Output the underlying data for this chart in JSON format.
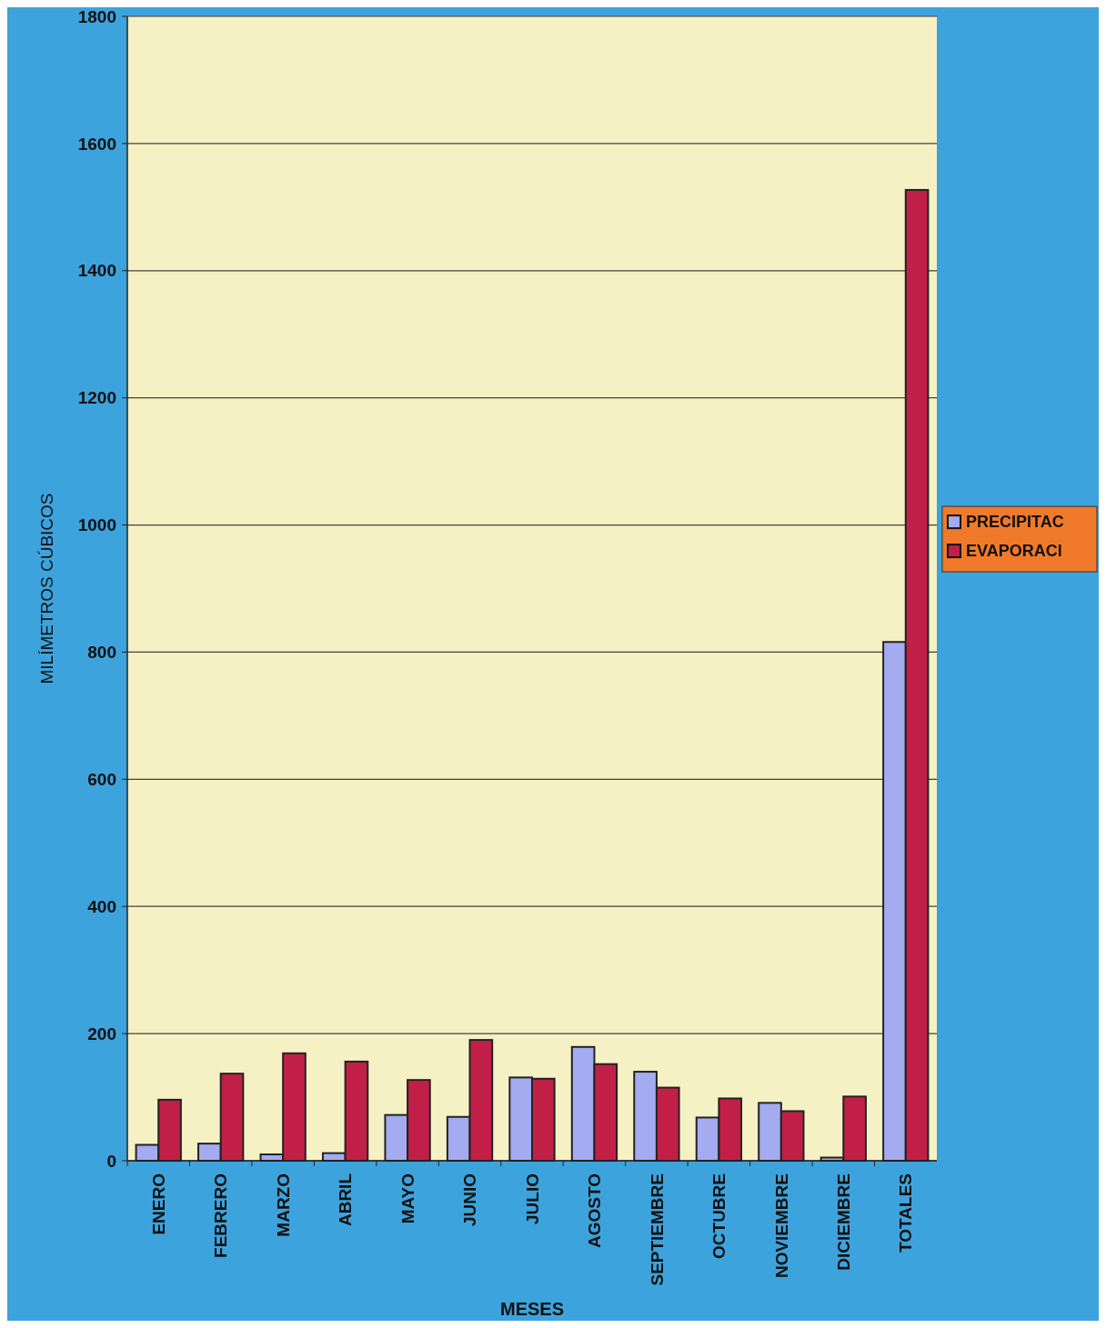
{
  "chart_data": {
    "type": "bar",
    "xlabel": "MESES",
    "ylabel": "MILÍMETROS CÚBICOS",
    "categories": [
      "ENERO",
      "FEBRERO",
      "MARZO",
      "ABRIL",
      "MAYO",
      "JUNIO",
      "JULIO",
      "AGOSTO",
      "SEPTIEMBRE",
      "OCTUBRE",
      "NOVIEMBRE",
      "DICIEMBRE",
      "TOTALES"
    ],
    "series": [
      {
        "name": "PRECIPITAC",
        "color": "#a4abf0",
        "values": [
          25,
          27,
          10,
          12,
          72,
          69,
          131,
          179,
          140,
          68,
          91,
          5,
          816
        ]
      },
      {
        "name": "EVAPORACI",
        "color": "#c21f48",
        "values": [
          96,
          137,
          169,
          156,
          127,
          190,
          129,
          152,
          115,
          98,
          78,
          101,
          1527
        ]
      }
    ],
    "ylim": [
      0,
      1800
    ],
    "yticks": [
      0,
      200,
      400,
      600,
      800,
      1000,
      1200,
      1400,
      1600,
      1800
    ],
    "grid": "y",
    "legend": "right"
  }
}
